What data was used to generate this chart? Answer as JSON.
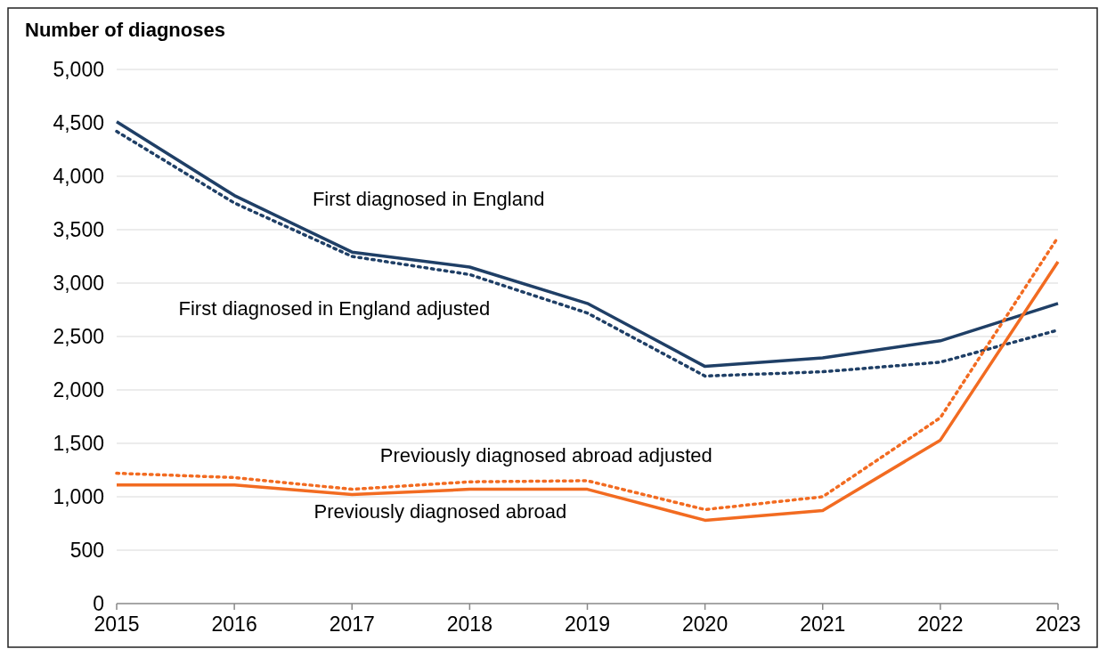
{
  "chart_data": {
    "type": "line",
    "ylabel": "Number of diagnoses",
    "x": [
      2015,
      2016,
      2017,
      2018,
      2019,
      2020,
      2021,
      2022,
      2023
    ],
    "xlim": [
      2015,
      2023
    ],
    "xticks": [
      2015,
      2016,
      2017,
      2018,
      2019,
      2020,
      2021,
      2022,
      2023
    ],
    "ylim": [
      0,
      5000
    ],
    "yticks": [
      0,
      {
        "value": 500,
        "label": "500"
      },
      {
        "value": 1000,
        "label": "1,000"
      },
      {
        "value": 1500,
        "label": "1,500"
      },
      {
        "value": 2000,
        "label": "2,000"
      },
      {
        "value": 2500,
        "label": "2,500"
      },
      {
        "value": 3000,
        "label": "3,000"
      },
      {
        "value": 3500,
        "label": "3,500"
      },
      {
        "value": 4000,
        "label": "4,000"
      },
      {
        "value": 4500,
        "label": "4,500"
      },
      {
        "value": 5000,
        "label": "5,000"
      }
    ],
    "grid": "y",
    "marker": "none",
    "series": [
      {
        "name": "First diagnosed in England",
        "color": "#1f3f66",
        "line_style": "solid",
        "values": [
          4510,
          3820,
          3290,
          3150,
          2810,
          2220,
          2300,
          2460,
          2810
        ]
      },
      {
        "name": "First diagnosed in England adjusted",
        "color": "#1f3f66",
        "line_style": "dotted",
        "values": [
          4420,
          3750,
          3250,
          3080,
          2720,
          2130,
          2170,
          2260,
          2560
        ]
      },
      {
        "name": "Previously diagnosed abroad adjusted",
        "color": "#f26b21",
        "line_style": "dotted",
        "values": [
          1220,
          1180,
          1070,
          1140,
          1150,
          880,
          1000,
          1740,
          3430
        ]
      },
      {
        "name": "Previously diagnosed abroad",
        "color": "#f26b21",
        "line_style": "solid",
        "values": [
          1110,
          1110,
          1020,
          1070,
          1070,
          780,
          870,
          1530,
          3200
        ]
      }
    ]
  }
}
